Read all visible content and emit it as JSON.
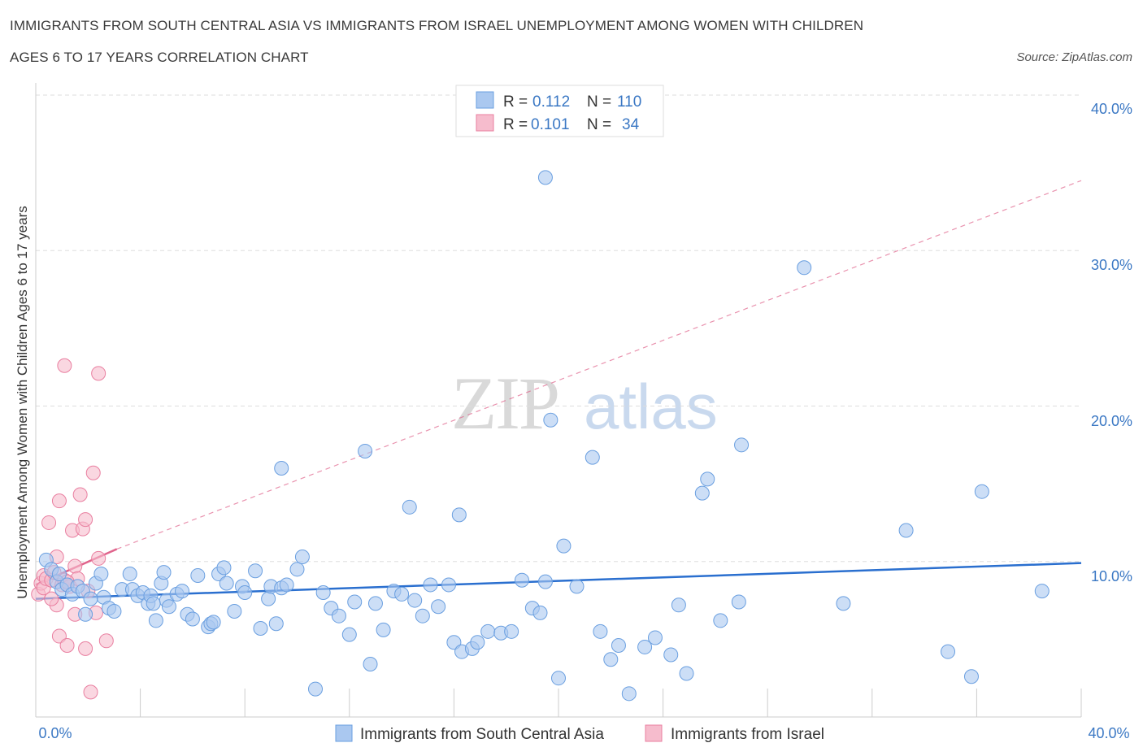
{
  "title_line1": "IMMIGRANTS FROM SOUTH CENTRAL ASIA VS IMMIGRANTS FROM ISRAEL UNEMPLOYMENT AMONG WOMEN WITH CHILDREN",
  "title_line2": "AGES 6 TO 17 YEARS CORRELATION CHART",
  "source": "Source: ZipAtlas.com",
  "watermark_zip": "ZIP",
  "watermark_atlas": "atlas",
  "legend": {
    "rows": [
      {
        "r_label": "R =",
        "r_value": "0.112",
        "n_label": "N =",
        "n_value": "110"
      },
      {
        "r_label": "R =",
        "r_value": "0.101",
        "n_label": "N =",
        "n_value": "34"
      }
    ]
  },
  "colors": {
    "blue_fill": "#aac8f0",
    "blue_stroke": "#6a9fe0",
    "blue_line": "#2a6fcf",
    "pink_fill": "#f6bccd",
    "pink_stroke": "#e97fa0",
    "pink_line": "#e0648c",
    "tick_text": "#3b78c4",
    "grid": "#dddddd"
  },
  "chart_data": {
    "type": "scatter",
    "title": "IMMIGRANTS FROM SOUTH CENTRAL ASIA VS IMMIGRANTS FROM ISRAEL UNEMPLOYMENT AMONG WOMEN WITH CHILDREN AGES 6 TO 17 YEARS CORRELATION CHART",
    "xlabel": "",
    "ylabel": "Unemployment Among Women with Children Ages 6 to 17 years",
    "xlim": [
      0,
      40
    ],
    "ylim": [
      0,
      40
    ],
    "x_tick_labels": [
      "0.0%",
      "40.0%"
    ],
    "y_ticks": [
      10,
      20,
      30,
      40
    ],
    "y_tick_labels": [
      "10.0%",
      "20.0%",
      "30.0%",
      "40.0%"
    ],
    "grid": true,
    "legend_position": "top-center",
    "series": [
      {
        "name": "Immigrants from South Central Asia",
        "color": "blue",
        "r": 0.112,
        "n": 110,
        "trend": {
          "x": [
            0,
            40
          ],
          "y": [
            7.6,
            9.9
          ],
          "style": "solid"
        },
        "points": [
          [
            0.4,
            10.1
          ],
          [
            0.6,
            9.5
          ],
          [
            0.8,
            8.7
          ],
          [
            0.9,
            9.2
          ],
          [
            1.0,
            8.2
          ],
          [
            1.2,
            8.5
          ],
          [
            1.4,
            7.9
          ],
          [
            1.6,
            8.4
          ],
          [
            1.8,
            8.1
          ],
          [
            1.9,
            6.6
          ],
          [
            2.3,
            8.6
          ],
          [
            2.5,
            9.2
          ],
          [
            2.6,
            7.7
          ],
          [
            2.8,
            7.0
          ],
          [
            3.0,
            6.8
          ],
          [
            3.3,
            8.2
          ],
          [
            3.6,
            9.2
          ],
          [
            3.7,
            8.2
          ],
          [
            3.9,
            7.8
          ],
          [
            4.1,
            8.0
          ],
          [
            4.3,
            7.3
          ],
          [
            4.4,
            7.8
          ],
          [
            4.6,
            6.2
          ],
          [
            4.8,
            8.6
          ],
          [
            5.0,
            7.5
          ],
          [
            5.1,
            7.1
          ],
          [
            5.4,
            7.9
          ],
          [
            5.6,
            8.1
          ],
          [
            5.8,
            6.6
          ],
          [
            6.0,
            6.3
          ],
          [
            6.2,
            9.1
          ],
          [
            6.6,
            5.8
          ],
          [
            6.7,
            6.0
          ],
          [
            7.0,
            9.2
          ],
          [
            7.2,
            9.6
          ],
          [
            7.3,
            8.6
          ],
          [
            7.6,
            6.8
          ],
          [
            7.9,
            8.4
          ],
          [
            8.0,
            8.0
          ],
          [
            8.4,
            9.4
          ],
          [
            8.6,
            5.7
          ],
          [
            8.9,
            7.6
          ],
          [
            9.0,
            8.4
          ],
          [
            9.2,
            6.0
          ],
          [
            9.4,
            8.3
          ],
          [
            9.6,
            8.5
          ],
          [
            10.0,
            9.5
          ],
          [
            10.2,
            10.3
          ],
          [
            11.0,
            8.0
          ],
          [
            11.3,
            7.0
          ],
          [
            11.6,
            6.5
          ],
          [
            12.0,
            5.3
          ],
          [
            12.2,
            7.4
          ],
          [
            12.6,
            17.1
          ],
          [
            12.8,
            3.4
          ],
          [
            13.0,
            7.3
          ],
          [
            13.3,
            5.6
          ],
          [
            13.7,
            8.1
          ],
          [
            14.0,
            7.9
          ],
          [
            14.5,
            7.5
          ],
          [
            14.8,
            6.5
          ],
          [
            15.1,
            8.5
          ],
          [
            15.4,
            7.1
          ],
          [
            15.8,
            8.5
          ],
          [
            16.0,
            4.8
          ],
          [
            16.3,
            4.2
          ],
          [
            16.7,
            4.4
          ],
          [
            16.9,
            4.8
          ],
          [
            17.3,
            5.5
          ],
          [
            17.8,
            5.4
          ],
          [
            18.2,
            5.5
          ],
          [
            18.6,
            8.8
          ],
          [
            19.0,
            7.0
          ],
          [
            19.3,
            6.7
          ],
          [
            19.5,
            8.7
          ],
          [
            19.7,
            19.1
          ],
          [
            20.0,
            2.5
          ],
          [
            20.2,
            11.0
          ],
          [
            20.7,
            8.4
          ],
          [
            21.3,
            16.7
          ],
          [
            21.6,
            5.5
          ],
          [
            22.0,
            3.7
          ],
          [
            22.3,
            4.6
          ],
          [
            22.7,
            1.5
          ],
          [
            23.3,
            4.5
          ],
          [
            23.7,
            5.1
          ],
          [
            24.3,
            4.0
          ],
          [
            24.6,
            7.2
          ],
          [
            24.9,
            2.8
          ],
          [
            25.5,
            14.4
          ],
          [
            25.7,
            15.3
          ],
          [
            26.2,
            6.2
          ],
          [
            26.9,
            7.4
          ],
          [
            27.0,
            17.5
          ],
          [
            19.5,
            34.7
          ],
          [
            29.4,
            28.9
          ],
          [
            6.8,
            6.1
          ],
          [
            4.9,
            9.3
          ],
          [
            9.4,
            16.0
          ],
          [
            14.3,
            13.5
          ],
          [
            16.2,
            13.0
          ],
          [
            30.9,
            7.3
          ],
          [
            33.3,
            12.0
          ],
          [
            34.9,
            4.2
          ],
          [
            36.2,
            14.5
          ],
          [
            38.5,
            8.1
          ],
          [
            35.8,
            2.6
          ],
          [
            4.5,
            7.3
          ],
          [
            2.1,
            7.6
          ],
          [
            10.7,
            1.8
          ]
        ]
      },
      {
        "name": "Immigrants from Israel",
        "color": "pink",
        "r": 0.101,
        "n": 34,
        "trend": {
          "x": [
            0,
            3.1
          ],
          "y": [
            8.5,
            10.8
          ],
          "style": "solid",
          "extended_to": [
            40,
            34.5
          ],
          "extended_style": "dashed"
        },
        "points": [
          [
            0.1,
            7.9
          ],
          [
            0.2,
            8.6
          ],
          [
            0.3,
            9.1
          ],
          [
            0.3,
            8.3
          ],
          [
            0.4,
            8.9
          ],
          [
            0.5,
            12.5
          ],
          [
            0.6,
            8.8
          ],
          [
            0.7,
            9.3
          ],
          [
            0.8,
            10.3
          ],
          [
            0.8,
            7.2
          ],
          [
            0.9,
            13.9
          ],
          [
            0.9,
            5.2
          ],
          [
            1.0,
            8.5
          ],
          [
            1.1,
            8.8
          ],
          [
            1.1,
            22.6
          ],
          [
            1.2,
            4.6
          ],
          [
            1.3,
            8.4
          ],
          [
            1.4,
            12.0
          ],
          [
            1.5,
            6.6
          ],
          [
            1.5,
            9.7
          ],
          [
            1.6,
            8.9
          ],
          [
            1.7,
            14.3
          ],
          [
            1.8,
            12.1
          ],
          [
            1.9,
            12.7
          ],
          [
            1.9,
            4.4
          ],
          [
            2.0,
            8.1
          ],
          [
            2.1,
            1.6
          ],
          [
            2.2,
            15.7
          ],
          [
            2.3,
            6.7
          ],
          [
            2.4,
            10.2
          ],
          [
            2.4,
            22.1
          ],
          [
            2.7,
            4.9
          ],
          [
            0.6,
            7.6
          ],
          [
            1.2,
            8.7
          ]
        ]
      }
    ]
  }
}
